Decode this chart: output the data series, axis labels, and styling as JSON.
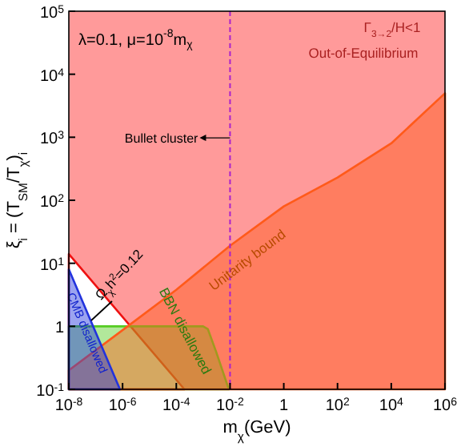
{
  "chart_data": {
    "type": "area",
    "xlabel": "m$_{χ}$(GeV)",
    "ylabel": "ξ$_{i}$ = (T$_{SM}$/T$_{χ}$)$_{i}$",
    "log": "xy",
    "grid": false,
    "xlim": [
      1e-08,
      1000000.0
    ],
    "ylim": [
      0.1,
      100000
    ],
    "xticks": [
      {
        "value": 1e-08,
        "label": "10$^{-8}$"
      },
      {
        "value": 1e-06,
        "label": "10$^{-6}$"
      },
      {
        "value": 0.0001,
        "label": "10$^{-4}$"
      },
      {
        "value": 0.01,
        "label": "10$^{-2}$"
      },
      1,
      {
        "value": 100,
        "label": "10$^{2}$"
      },
      {
        "value": 10000,
        "label": "10$^{4}$"
      },
      {
        "value": 1000000,
        "label": "10$^{6}$"
      }
    ],
    "yticks": [
      {
        "value": 0.1,
        "label": "10$^{-1}$"
      },
      1,
      {
        "value": 10,
        "label": "10$^{1}$"
      },
      {
        "value": 100,
        "label": "10$^{2}$"
      },
      {
        "value": 1000,
        "label": "10$^{3}$"
      },
      {
        "value": 10000,
        "label": "10$^{4}$"
      },
      {
        "value": 100000,
        "label": "10$^{5}$"
      }
    ],
    "bands": [
      {
        "axis": "y",
        "from": 0.1,
        "to": 100000,
        "color": "#ff9a9a"
      }
    ],
    "series": [
      {
        "color": "#ee1111",
        "x": [
          1e-08,
          0.0002
        ],
        "values": [
          14,
          0.1
        ]
      },
      {
        "color": "#55cc22",
        "x": [
          1e-08,
          0.001,
          0.0015,
          0.003,
          0.009
        ],
        "values": [
          1,
          1,
          0.9,
          0.4,
          0.1
        ]
      },
      {
        "color": "#ff5a1a",
        "x": [
          1e-08,
          1e-06,
          0.0001,
          0.01,
          1,
          100,
          10000,
          1000000
        ],
        "values": [
          0.2,
          0.87,
          3.8,
          19,
          80,
          230,
          800,
          5000
        ]
      },
      {
        "color": "#2233dd",
        "x": [
          1e-08,
          8e-07
        ],
        "values": [
          8,
          0.1
        ]
      }
    ],
    "ref_lines": [
      {
        "axis": "x",
        "value": 0.01,
        "label": "Bullet cluster",
        "color": "#aa22cc",
        "line_style": "dashed"
      }
    ],
    "annotations": [
      "λ=0.1, μ=10$^{-8}$m$_{χ}$",
      "Γ$_{3→2}$/H<1",
      "Out-of-Equilibrium",
      "Unitarity bound",
      "BBN disallowed",
      "CMB disallowed",
      "Ω$_{χ}$h$^{2}$=0.12"
    ]
  }
}
